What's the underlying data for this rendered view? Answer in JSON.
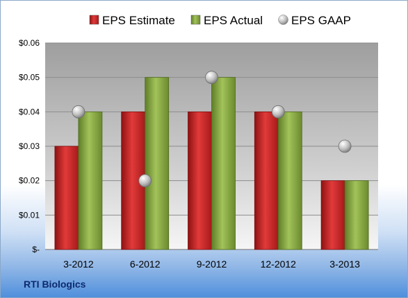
{
  "chart_data": {
    "type": "bar",
    "categories": [
      "3-2012",
      "6-2012",
      "9-2012",
      "12-2012",
      "3-2013"
    ],
    "series": [
      {
        "name": "EPS Estimate",
        "values": [
          0.03,
          0.04,
          0.04,
          0.04,
          0.02
        ],
        "color": "#d42a2a"
      },
      {
        "name": "EPS Actual",
        "values": [
          0.04,
          0.05,
          0.05,
          0.04,
          0.02
        ],
        "color": "#8fb04a"
      },
      {
        "name": "EPS GAAP",
        "values": [
          0.04,
          0.02,
          0.05,
          0.04,
          0.03
        ],
        "color": "#b8b8b8",
        "marker": "circle"
      }
    ],
    "ylim": [
      0,
      0.06
    ],
    "yticks": [
      0,
      0.01,
      0.02,
      0.03,
      0.04,
      0.05,
      0.06
    ],
    "ytick_labels": [
      "$-",
      "$0.01",
      "$0.02",
      "$0.03",
      "$0.04",
      "$0.05",
      "$0.06"
    ],
    "grid": true,
    "legend_position": "top",
    "company": "RTI Biologics"
  }
}
